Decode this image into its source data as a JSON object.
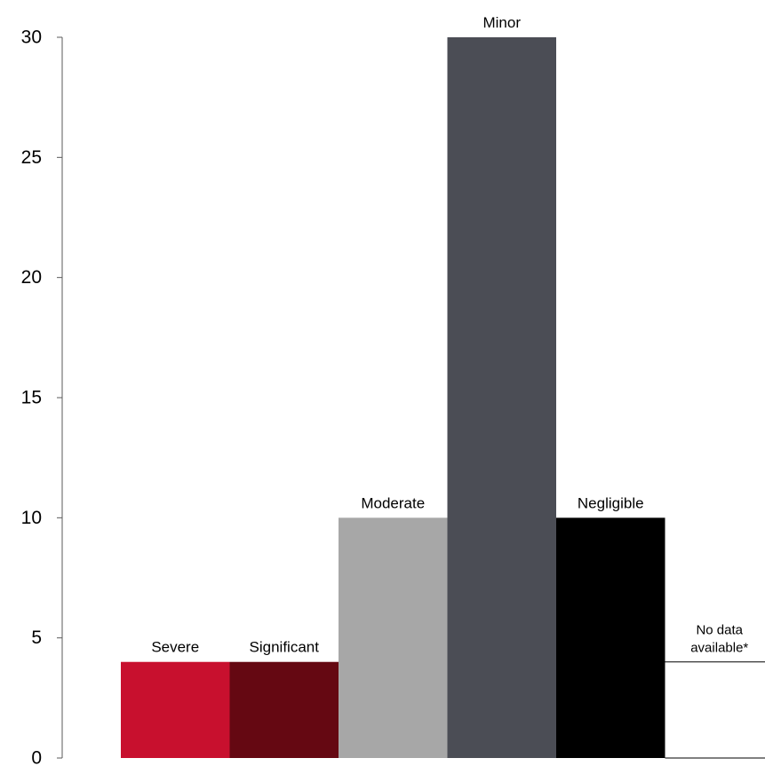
{
  "chart_data": {
    "type": "bar",
    "title": "",
    "xlabel": "",
    "ylabel": "",
    "ylim": [
      0,
      30
    ],
    "yticks": [
      0,
      5,
      10,
      15,
      20,
      25,
      30
    ],
    "grid": false,
    "legend": "none",
    "categories": [
      "Severe",
      "Significant",
      "Moderate",
      "Minor",
      "Negligible",
      "No data available*"
    ],
    "category_labels": [
      [
        "Severe"
      ],
      [
        "Significant"
      ],
      [
        "Moderate"
      ],
      [
        "Minor"
      ],
      [
        "Negligible"
      ],
      [
        "No data",
        "available*"
      ]
    ],
    "values": [
      4,
      4,
      10,
      30,
      10,
      4
    ],
    "colors": [
      "#c8102e",
      "#650812",
      "#a7a7a7",
      "#4b4d55",
      "#000000",
      "#ffffff"
    ],
    "outline_only": [
      false,
      false,
      false,
      false,
      false,
      true
    ]
  }
}
